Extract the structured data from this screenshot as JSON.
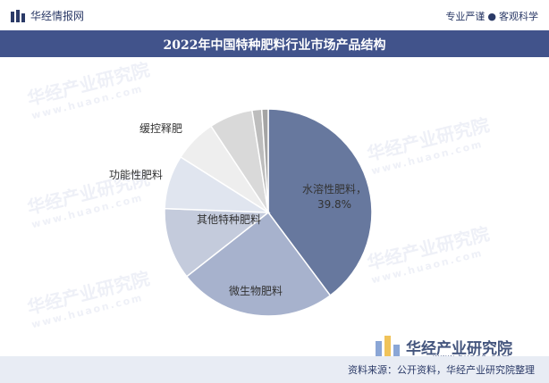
{
  "header": {
    "brand": "华经情报网",
    "slogan_left": "专业严谨",
    "slogan_dot": "●",
    "slogan_right": "客观科学"
  },
  "watermark": {
    "text": "华经产业研究院",
    "url": "www.huaon.com"
  },
  "footer": {
    "source": "资料来源：公开资料，华经产业研究院整理"
  },
  "corner_logo": {
    "name": "华经产业研究院",
    "url": "www.huaon.com"
  },
  "chart_data": {
    "type": "pie",
    "title": "2022年中国特种肥料行业市场产品结构",
    "slices": [
      {
        "label": "水溶性肥料",
        "value": 39.8,
        "value_label": "39.8%",
        "color": "#67789e"
      },
      {
        "label": "微生物肥料",
        "value": 24.6,
        "value_label": "",
        "color": "#a7b2cd"
      },
      {
        "label": "其他特种肥料",
        "value": 11.2,
        "value_label": "",
        "color": "#c4cbdc"
      },
      {
        "label": "功能性肥料",
        "value": 8.4,
        "value_label": "",
        "color": "#e0e5ef"
      },
      {
        "label": "缓控释肥",
        "value": 6.7,
        "value_label": "",
        "color": "#eeeeee"
      },
      {
        "label": "",
        "value": 6.8,
        "value_label": "",
        "color": "#d9d9d9"
      },
      {
        "label": "",
        "value": 1.5,
        "value_label": "",
        "color": "#bdbdbd"
      },
      {
        "label": "",
        "value": 1.0,
        "value_label": "",
        "color": "#a4a4a4"
      }
    ],
    "start_angle_deg": 0,
    "direction": "clockwise",
    "legend": "none"
  }
}
